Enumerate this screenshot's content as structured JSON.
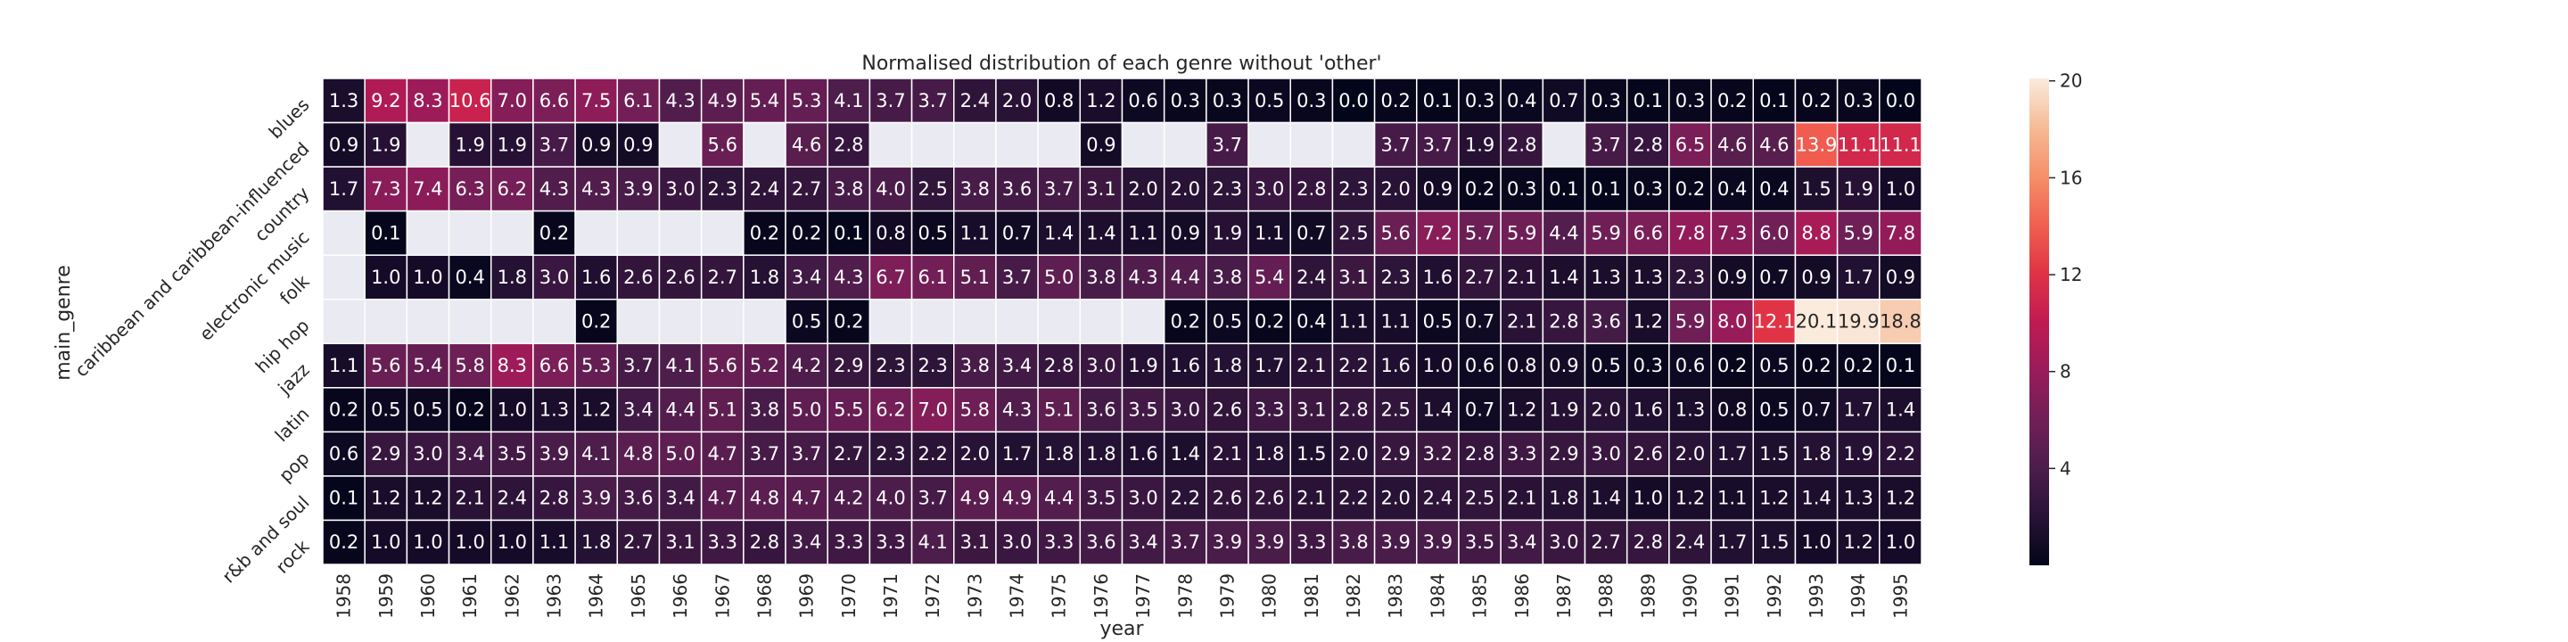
{
  "chart_data": {
    "type": "heatmap",
    "title": "Normalised distribution of each genre without 'other'",
    "xlabel": "year",
    "ylabel": "main_genre",
    "x": [
      "1958",
      "1959",
      "1960",
      "1961",
      "1962",
      "1963",
      "1964",
      "1965",
      "1966",
      "1967",
      "1968",
      "1969",
      "1970",
      "1971",
      "1972",
      "1973",
      "1974",
      "1975",
      "1976",
      "1977",
      "1978",
      "1979",
      "1980",
      "1981",
      "1982",
      "1983",
      "1984",
      "1985",
      "1986",
      "1987",
      "1988",
      "1989",
      "1990",
      "1991",
      "1992",
      "1993",
      "1994",
      "1995"
    ],
    "y": [
      "blues",
      "caribbean and caribbean-influenced",
      "country",
      "electronic music",
      "folk",
      "hip hop",
      "jazz",
      "latin",
      "pop",
      "r&b and soul",
      "rock"
    ],
    "values": [
      [
        1.3,
        9.2,
        8.3,
        10.6,
        7.0,
        6.6,
        7.5,
        6.1,
        4.3,
        4.9,
        5.4,
        5.3,
        4.1,
        3.7,
        3.7,
        2.4,
        2.0,
        0.8,
        1.2,
        0.6,
        0.3,
        0.3,
        0.5,
        0.3,
        0.0,
        0.2,
        0.1,
        0.3,
        0.4,
        0.7,
        0.3,
        0.1,
        0.3,
        0.2,
        0.1,
        0.2,
        0.3,
        0.0
      ],
      [
        0.9,
        1.9,
        null,
        1.9,
        1.9,
        3.7,
        0.9,
        0.9,
        null,
        5.6,
        null,
        4.6,
        2.8,
        null,
        null,
        null,
        null,
        null,
        0.9,
        null,
        null,
        3.7,
        null,
        null,
        null,
        3.7,
        3.7,
        1.9,
        2.8,
        null,
        3.7,
        2.8,
        6.5,
        4.6,
        4.6,
        13.9,
        11.1,
        11.1
      ],
      [
        1.7,
        7.3,
        7.4,
        6.3,
        6.2,
        4.3,
        4.3,
        3.9,
        3.0,
        2.3,
        2.4,
        2.7,
        3.8,
        4.0,
        2.5,
        3.8,
        3.6,
        3.7,
        3.1,
        2.0,
        2.0,
        2.3,
        3.0,
        2.8,
        2.3,
        2.0,
        0.9,
        0.2,
        0.3,
        0.1,
        0.1,
        0.3,
        0.2,
        0.4,
        0.4,
        1.5,
        1.9,
        1.0
      ],
      [
        null,
        0.1,
        null,
        null,
        null,
        0.2,
        null,
        null,
        null,
        null,
        0.2,
        0.2,
        0.1,
        0.8,
        0.5,
        1.1,
        0.7,
        1.4,
        1.4,
        1.1,
        0.9,
        1.9,
        1.1,
        0.7,
        2.5,
        5.6,
        7.2,
        5.7,
        5.9,
        4.4,
        5.9,
        6.6,
        7.8,
        7.3,
        6.0,
        8.8,
        5.9,
        7.8
      ],
      [
        null,
        1.0,
        1.0,
        0.4,
        1.8,
        3.0,
        1.6,
        2.6,
        2.6,
        2.7,
        1.8,
        3.4,
        4.3,
        6.7,
        6.1,
        5.1,
        3.7,
        5.0,
        3.8,
        4.3,
        4.4,
        3.8,
        5.4,
        2.4,
        3.1,
        2.3,
        1.6,
        2.7,
        2.1,
        1.4,
        1.3,
        1.3,
        2.3,
        0.9,
        0.7,
        0.9,
        1.7,
        0.9
      ],
      [
        null,
        null,
        null,
        null,
        null,
        null,
        0.2,
        null,
        null,
        null,
        null,
        0.5,
        0.2,
        null,
        null,
        null,
        null,
        null,
        null,
        null,
        0.2,
        0.5,
        0.2,
        0.4,
        1.1,
        1.1,
        0.5,
        0.7,
        2.1,
        2.8,
        3.6,
        1.2,
        5.9,
        8.0,
        12.1,
        20.1,
        19.9,
        18.8
      ],
      [
        1.1,
        5.6,
        5.4,
        5.8,
        8.3,
        6.6,
        5.3,
        3.7,
        4.1,
        5.6,
        5.2,
        4.2,
        2.9,
        2.3,
        2.3,
        3.8,
        3.4,
        2.8,
        3.0,
        1.9,
        1.6,
        1.8,
        1.7,
        2.1,
        2.2,
        1.6,
        1.0,
        0.6,
        0.8,
        0.9,
        0.5,
        0.3,
        0.6,
        0.2,
        0.5,
        0.2,
        0.2,
        0.1
      ],
      [
        0.2,
        0.5,
        0.5,
        0.2,
        1.0,
        1.3,
        1.2,
        3.4,
        4.4,
        5.1,
        3.8,
        5.0,
        5.5,
        6.2,
        7.0,
        5.8,
        4.3,
        5.1,
        3.6,
        3.5,
        3.0,
        2.6,
        3.3,
        3.1,
        2.8,
        2.5,
        1.4,
        0.7,
        1.2,
        1.9,
        2.0,
        1.6,
        1.3,
        0.8,
        0.5,
        0.7,
        1.7,
        1.4
      ],
      [
        0.6,
        2.9,
        3.0,
        3.4,
        3.5,
        3.9,
        4.1,
        4.8,
        5.0,
        4.7,
        3.7,
        3.7,
        2.7,
        2.3,
        2.2,
        2.0,
        1.7,
        1.8,
        1.8,
        1.6,
        1.4,
        2.1,
        1.8,
        1.5,
        2.0,
        2.9,
        3.2,
        2.8,
        3.3,
        2.9,
        3.0,
        2.6,
        2.0,
        1.7,
        1.5,
        1.8,
        1.9,
        2.2
      ],
      [
        0.1,
        1.2,
        1.2,
        2.1,
        2.4,
        2.8,
        3.9,
        3.6,
        3.4,
        4.7,
        4.8,
        4.7,
        4.2,
        4.0,
        3.7,
        4.9,
        4.9,
        4.4,
        3.5,
        3.0,
        2.2,
        2.6,
        2.6,
        2.1,
        2.2,
        2.0,
        2.4,
        2.5,
        2.1,
        1.8,
        1.4,
        1.0,
        1.2,
        1.1,
        1.2,
        1.4,
        1.3,
        1.2
      ],
      [
        0.2,
        1.0,
        1.0,
        1.0,
        1.0,
        1.1,
        1.8,
        2.7,
        3.1,
        3.3,
        2.8,
        3.4,
        3.3,
        3.3,
        4.1,
        3.1,
        3.0,
        3.3,
        3.6,
        3.4,
        3.7,
        3.9,
        3.9,
        3.3,
        3.8,
        3.9,
        3.9,
        3.5,
        3.4,
        3.0,
        2.7,
        2.8,
        2.4,
        1.7,
        1.5,
        1.0,
        1.2,
        1.0
      ]
    ],
    "value_format": "0.1",
    "missing_cells": "blank",
    "colormap": "rocket",
    "missing_color": "#eaeaf2",
    "colorbar": {
      "range": [
        0,
        20.1
      ],
      "ticks": [
        4,
        8,
        12,
        16,
        20
      ]
    },
    "grid": false,
    "legend": "colorbar-right"
  }
}
